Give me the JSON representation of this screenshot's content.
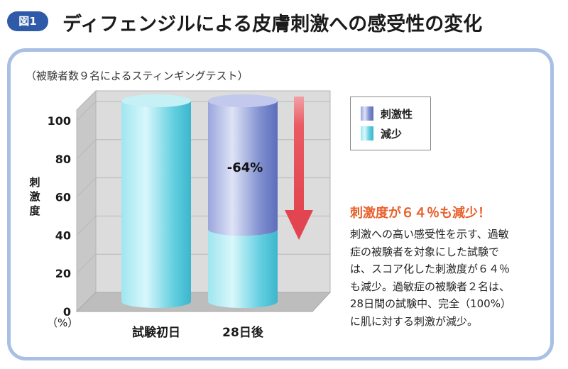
{
  "figure": {
    "badge": "図1",
    "title": "ディフェンジルによる皮膚刺激への感受性の変化"
  },
  "chart_data": {
    "type": "bar",
    "subtitle": "（被験者数９名によるスティンギングテスト）",
    "categories": [
      "試験初日",
      "28日後"
    ],
    "series": [
      {
        "name": "刺激性",
        "values": [
          0,
          64
        ],
        "color": "#7f8fd0"
      },
      {
        "name": "減少",
        "values": [
          100,
          36
        ],
        "color": "#63cfe0"
      }
    ],
    "ylabel": "刺激度",
    "yunit": "（%）",
    "ylim": [
      0,
      100
    ],
    "yticks": [
      "0",
      "20",
      "40",
      "60",
      "80",
      "100"
    ],
    "annotation": "-64%",
    "grid": true,
    "legend_position": "right"
  },
  "text": {
    "headline": "刺激度が６４％も減少！",
    "body": [
      "刺激への高い感受性を示す、過敏",
      "症の被験者を対象にした試験で",
      "は、スコア化した刺激度が６４％",
      "も減少。過敏症の被験者２名は、",
      "28日間の試験中、完全（100%）",
      "に肌に対する刺激が減少。"
    ]
  }
}
